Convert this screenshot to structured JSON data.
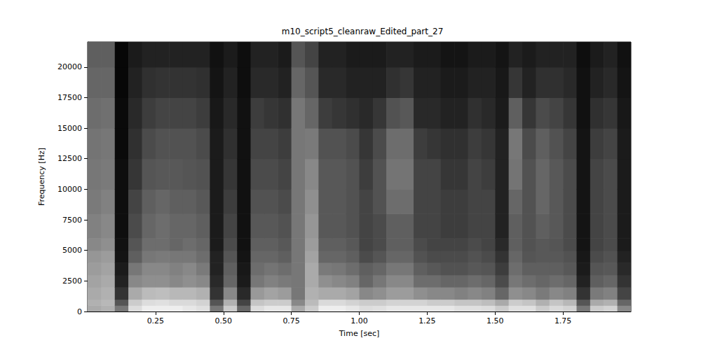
{
  "chart_data": {
    "type": "heatmap",
    "title": "m10_script5_cleanraw_Edited_part_27",
    "x_label": "Time [sec]",
    "y_label": "Frequency [Hz]",
    "xlim": [
      0,
      2.0
    ],
    "ylim": [
      0,
      22050
    ],
    "xticks": [
      {
        "value": 0.25,
        "label": "0.25"
      },
      {
        "value": 0.5,
        "label": "0.50"
      },
      {
        "value": 0.75,
        "label": "0.75"
      },
      {
        "value": 1.0,
        "label": "1.00"
      },
      {
        "value": 1.25,
        "label": "1.25"
      },
      {
        "value": 1.5,
        "label": "1.50"
      },
      {
        "value": 1.75,
        "label": "1.75"
      }
    ],
    "yticks": [
      0,
      2500,
      5000,
      7500,
      10000,
      12500,
      15000,
      17500,
      20000
    ],
    "grid": false,
    "color": "gray",
    "zlim": [
      20,
      95
    ],
    "x_bins": [
      0,
      0.05,
      0.1,
      0.15,
      0.2,
      0.25,
      0.3,
      0.35,
      0.4,
      0.45,
      0.5,
      0.55,
      0.6,
      0.65,
      0.7,
      0.75,
      0.8,
      0.85,
      0.9,
      0.95,
      1.0,
      1.05,
      1.1,
      1.15,
      1.2,
      1.25,
      1.3,
      1.35,
      1.4,
      1.45,
      1.5,
      1.55,
      1.6,
      1.65,
      1.7,
      1.75,
      1.8,
      1.85,
      1.9,
      1.95,
      2.0
    ],
    "y_bins": [
      0,
      500,
      1000,
      2000,
      3000,
      4000,
      5000,
      6000,
      8000,
      10000,
      12500,
      15000,
      17500,
      20000,
      22050
    ],
    "cells": [
      [
        70,
        72,
        70,
        68,
        66,
        64,
        60,
        58,
        56,
        55,
        54,
        52,
        50,
        48
      ],
      [
        72,
        74,
        72,
        70,
        68,
        66,
        62,
        60,
        58,
        56,
        55,
        53,
        50,
        48
      ],
      [
        55,
        45,
        35,
        30,
        28,
        26,
        25,
        24,
        24,
        24,
        23,
        23,
        22,
        22
      ],
      [
        85,
        80,
        70,
        60,
        55,
        48,
        45,
        42,
        40,
        36,
        34,
        32,
        30,
        28
      ],
      [
        90,
        85,
        75,
        62,
        60,
        55,
        52,
        50,
        48,
        45,
        42,
        38,
        34,
        30
      ],
      [
        90,
        86,
        76,
        62,
        60,
        56,
        52,
        52,
        50,
        46,
        44,
        40,
        35,
        30
      ],
      [
        90,
        84,
        74,
        60,
        58,
        55,
        50,
        50,
        48,
        46,
        44,
        40,
        35,
        30
      ],
      [
        88,
        84,
        74,
        62,
        60,
        55,
        52,
        50,
        48,
        45,
        44,
        40,
        35,
        30
      ],
      [
        86,
        82,
        72,
        60,
        56,
        52,
        50,
        48,
        46,
        44,
        42,
        38,
        34,
        30
      ],
      [
        55,
        45,
        35,
        32,
        30,
        30,
        28,
        28,
        28,
        28,
        28,
        27,
        26,
        25
      ],
      [
        80,
        72,
        60,
        50,
        48,
        45,
        42,
        40,
        38,
        36,
        34,
        32,
        30,
        28
      ],
      [
        50,
        40,
        32,
        28,
        27,
        26,
        25,
        25,
        25,
        25,
        25,
        25,
        24,
        24
      ],
      [
        85,
        78,
        65,
        55,
        52,
        50,
        48,
        46,
        44,
        42,
        40,
        38,
        32,
        30
      ],
      [
        88,
        80,
        68,
        58,
        54,
        50,
        48,
        46,
        44,
        42,
        40,
        36,
        32,
        30
      ],
      [
        88,
        80,
        66,
        56,
        52,
        48,
        46,
        44,
        42,
        40,
        38,
        34,
        30,
        28
      ],
      [
        70,
        60,
        55,
        55,
        55,
        55,
        55,
        55,
        55,
        55,
        55,
        55,
        50,
        45
      ],
      [
        80,
        75,
        72,
        70,
        70,
        68,
        66,
        64,
        62,
        60,
        56,
        50,
        45,
        40
      ],
      [
        90,
        84,
        70,
        62,
        56,
        50,
        48,
        46,
        46,
        46,
        44,
        38,
        32,
        30
      ],
      [
        90,
        84,
        70,
        60,
        55,
        50,
        48,
        46,
        46,
        46,
        44,
        36,
        32,
        30
      ],
      [
        88,
        82,
        68,
        58,
        52,
        48,
        46,
        44,
        44,
        44,
        42,
        34,
        30,
        28
      ],
      [
        85,
        80,
        60,
        50,
        48,
        42,
        40,
        40,
        40,
        38,
        36,
        32,
        30,
        28
      ],
      [
        86,
        80,
        62,
        55,
        50,
        45,
        42,
        42,
        44,
        44,
        42,
        36,
        30,
        28
      ],
      [
        88,
        82,
        66,
        60,
        55,
        50,
        48,
        48,
        52,
        54,
        52,
        44,
        34,
        30
      ],
      [
        88,
        82,
        66,
        60,
        55,
        50,
        48,
        48,
        52,
        54,
        52,
        46,
        36,
        30
      ],
      [
        88,
        82,
        62,
        52,
        48,
        44,
        42,
        40,
        40,
        40,
        38,
        32,
        30,
        28
      ],
      [
        88,
        80,
        60,
        52,
        46,
        42,
        40,
        40,
        40,
        40,
        36,
        32,
        30,
        28
      ],
      [
        88,
        80,
        60,
        50,
        44,
        42,
        40,
        38,
        38,
        36,
        34,
        30,
        28,
        26
      ],
      [
        86,
        78,
        58,
        50,
        44,
        42,
        40,
        38,
        38,
        36,
        34,
        30,
        28,
        26
      ],
      [
        86,
        78,
        60,
        52,
        46,
        44,
        42,
        40,
        40,
        40,
        38,
        34,
        30,
        28
      ],
      [
        85,
        76,
        58,
        50,
        45,
        42,
        40,
        40,
        40,
        38,
        36,
        32,
        30,
        28
      ],
      [
        80,
        70,
        50,
        42,
        38,
        35,
        32,
        30,
        30,
        30,
        30,
        28,
        27,
        26
      ],
      [
        86,
        80,
        62,
        55,
        52,
        50,
        48,
        48,
        50,
        54,
        55,
        48,
        36,
        30
      ],
      [
        86,
        78,
        60,
        52,
        48,
        45,
        44,
        44,
        44,
        44,
        42,
        36,
        30,
        28
      ],
      [
        80,
        72,
        56,
        50,
        48,
        46,
        46,
        48,
        50,
        50,
        48,
        42,
        34,
        30
      ],
      [
        84,
        78,
        60,
        52,
        48,
        46,
        45,
        46,
        46,
        46,
        44,
        40,
        34,
        30
      ],
      [
        82,
        74,
        58,
        50,
        46,
        44,
        42,
        42,
        42,
        42,
        40,
        36,
        32,
        30
      ],
      [
        55,
        45,
        35,
        30,
        28,
        27,
        26,
        26,
        26,
        26,
        26,
        25,
        25,
        24
      ],
      [
        80,
        70,
        56,
        48,
        45,
        42,
        40,
        40,
        40,
        40,
        38,
        34,
        30,
        28
      ],
      [
        82,
        72,
        58,
        50,
        46,
        44,
        42,
        42,
        42,
        42,
        40,
        36,
        32,
        30
      ],
      [
        60,
        50,
        40,
        35,
        32,
        30,
        28,
        28,
        28,
        28,
        28,
        27,
        26,
        25
      ]
    ]
  }
}
